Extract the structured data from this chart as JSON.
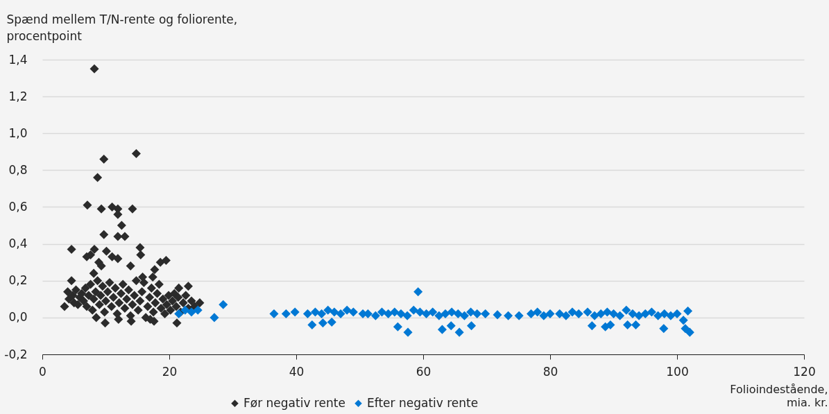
{
  "chart_data": {
    "type": "scatter",
    "ylabel": "Spænd mellem T/N-rente og foliorente,\nprocentpoint",
    "xlabel": "Folioindestående,\nmia. kr.",
    "xlim": [
      0,
      120
    ],
    "xticks": [
      0,
      20,
      40,
      60,
      80,
      100,
      120
    ],
    "ylim": [
      -0.2,
      1.4
    ],
    "yticks": [
      {
        "value": -0.2,
        "label": "-0,2"
      },
      {
        "value": 0,
        "label": "0,0"
      },
      {
        "value": 0.2,
        "label": "0,2"
      },
      {
        "value": 0.4,
        "label": "0,4"
      },
      {
        "value": 0.6,
        "label": "0,6"
      },
      {
        "value": 0.8,
        "label": "0,8"
      },
      {
        "value": 1.0,
        "label": "1,0"
      },
      {
        "value": 1.2,
        "label": "1,2"
      },
      {
        "value": 1.4,
        "label": "1,4"
      }
    ],
    "grid": "y",
    "legend": "bottom",
    "marker": "diamond",
    "series": [
      {
        "name": "Før negativ rente",
        "color": "#2b2b2b",
        "x": [
          8.2,
          14.8,
          9.7,
          8.7,
          7.1,
          9.3,
          11.0,
          11.9,
          14.2,
          11.9,
          12.5,
          11.9,
          13.0,
          9.7,
          4.6,
          8.2,
          10.1,
          15.4,
          15.5,
          7.6,
          7.0,
          11.0,
          11.9,
          13.9,
          8.9,
          9.3,
          18.6,
          19.5,
          17.7,
          8.1,
          17.4,
          4.6,
          3.5,
          9.9,
          17.6,
          21.2,
          23.0,
          21.5,
          24.8,
          4.0,
          4.2,
          4.8,
          5.0,
          5.3,
          5.6,
          5.9,
          6.2,
          6.5,
          6.8,
          7.0,
          7.3,
          7.6,
          7.9,
          8.1,
          8.4,
          8.7,
          9.0,
          9.2,
          9.5,
          9.8,
          10.0,
          10.3,
          10.6,
          10.9,
          11.2,
          11.5,
          11.8,
          12.1,
          12.4,
          12.7,
          13.0,
          13.3,
          13.6,
          13.9,
          14.2,
          14.5,
          14.8,
          15.1,
          15.4,
          15.7,
          16.0,
          16.3,
          16.6,
          16.9,
          17.2,
          17.5,
          17.8,
          18.1,
          18.4,
          18.7,
          19.0,
          19.3,
          19.6,
          19.9,
          20.2,
          20.5,
          20.8,
          21.1,
          21.4,
          21.8,
          22.2,
          22.6,
          23.0,
          23.5,
          24.0,
          12.0,
          14.0,
          15.8,
          17.0,
          8.5
        ],
        "values": [
          1.35,
          0.89,
          0.86,
          0.76,
          0.61,
          0.59,
          0.6,
          0.59,
          0.59,
          0.56,
          0.5,
          0.44,
          0.44,
          0.45,
          0.37,
          0.37,
          0.36,
          0.38,
          0.34,
          0.34,
          0.33,
          0.33,
          0.32,
          0.28,
          0.3,
          0.28,
          0.3,
          0.31,
          0.26,
          0.24,
          0.22,
          0.2,
          0.06,
          -0.03,
          -0.02,
          -0.03,
          0.17,
          0.16,
          0.08,
          0.14,
          0.1,
          0.12,
          0.08,
          0.15,
          0.07,
          0.11,
          0.13,
          0.09,
          0.16,
          0.06,
          0.12,
          0.18,
          0.04,
          0.1,
          0.14,
          0.2,
          0.07,
          0.12,
          0.17,
          0.03,
          0.09,
          0.14,
          0.19,
          0.06,
          0.11,
          0.16,
          0.02,
          0.08,
          0.13,
          0.18,
          0.05,
          0.1,
          0.15,
          0.01,
          0.07,
          0.12,
          0.2,
          0.04,
          0.09,
          0.14,
          0.19,
          0.0,
          0.06,
          0.11,
          0.16,
          0.03,
          0.08,
          0.13,
          0.18,
          0.05,
          0.1,
          0.02,
          0.07,
          0.12,
          0.04,
          0.09,
          0.13,
          0.06,
          0.11,
          0.03,
          0.08,
          0.12,
          0.05,
          0.09,
          0.06,
          -0.01,
          -0.02,
          0.22,
          -0.01,
          0.0
        ]
      },
      {
        "name": "Efter negativ rente",
        "color": "#0078d4",
        "x": [
          21.5,
          22.5,
          23.5,
          24.5,
          27.1,
          28.5,
          36.5,
          38.4,
          39.8,
          41.8,
          43.0,
          44.0,
          45.0,
          46.0,
          47.0,
          48.0,
          49.0,
          50.5,
          42.5,
          44.2,
          45.6,
          51.3,
          52.5,
          53.5,
          54.5,
          55.5,
          56.5,
          57.5,
          58.5,
          59.5,
          60.5,
          61.5,
          62.5,
          63.5,
          64.5,
          65.5,
          66.5,
          67.5,
          68.5,
          69.8,
          59.2,
          56.0,
          57.6,
          63.0,
          65.7,
          64.4,
          67.6,
          71.7,
          73.4,
          75.1,
          77.0,
          78.0,
          79.0,
          80.0,
          81.5,
          82.5,
          83.5,
          84.5,
          85.9,
          87.0,
          88.0,
          89.0,
          90.0,
          91.0,
          92.0,
          93.0,
          94.0,
          95.0,
          96.0,
          97.0,
          98.0,
          99.0,
          100.0,
          86.6,
          88.7,
          89.5,
          92.2,
          93.5,
          97.9,
          101.7,
          101.0,
          101.3,
          102.0
        ],
        "values": [
          0.02,
          0.04,
          0.03,
          0.04,
          0.0,
          0.07,
          0.02,
          0.02,
          0.03,
          0.02,
          0.03,
          0.02,
          0.04,
          0.03,
          0.02,
          0.04,
          0.03,
          0.02,
          -0.04,
          -0.03,
          -0.025,
          0.02,
          0.01,
          0.03,
          0.02,
          0.03,
          0.02,
          0.01,
          0.04,
          0.03,
          0.02,
          0.03,
          0.01,
          0.02,
          0.03,
          0.02,
          0.01,
          0.03,
          0.02,
          0.02,
          0.14,
          -0.05,
          -0.08,
          -0.065,
          -0.08,
          -0.045,
          -0.045,
          0.015,
          0.01,
          0.01,
          0.02,
          0.03,
          0.01,
          0.02,
          0.02,
          0.01,
          0.03,
          0.02,
          0.03,
          0.01,
          0.02,
          0.03,
          0.02,
          0.01,
          0.04,
          0.02,
          0.01,
          0.02,
          0.03,
          0.01,
          0.02,
          0.01,
          0.02,
          -0.045,
          -0.05,
          -0.04,
          -0.04,
          -0.04,
          -0.06,
          0.035,
          -0.015,
          -0.06,
          -0.08
        ]
      }
    ]
  }
}
